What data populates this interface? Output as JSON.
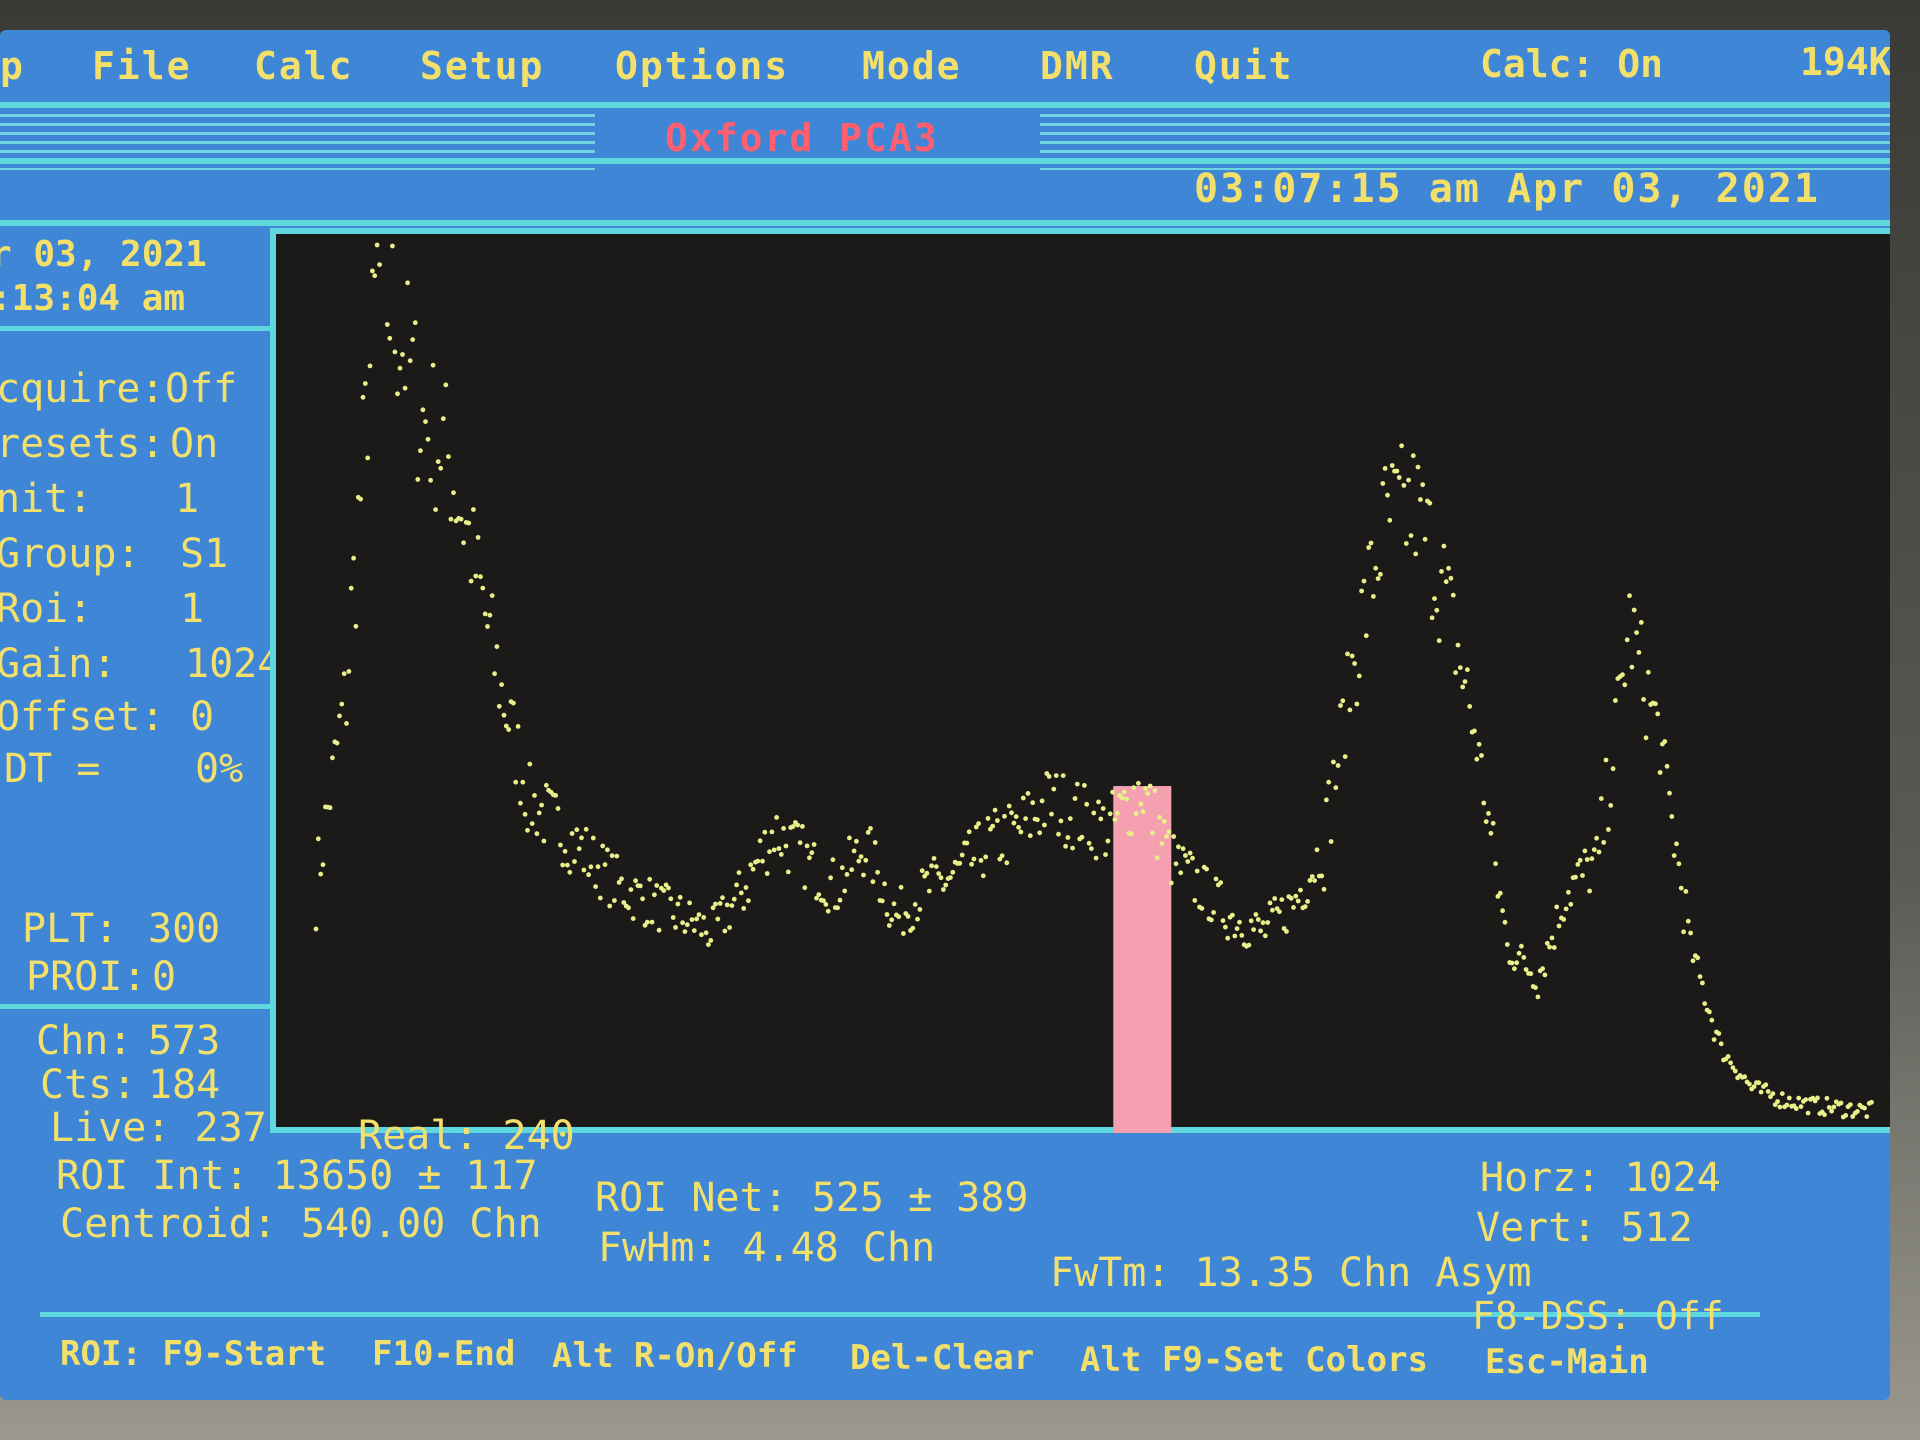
{
  "menu": {
    "items": [
      "p",
      "File",
      "Calc",
      "Setup",
      "Options",
      "Mode",
      "DMR",
      "Quit"
    ],
    "calc_status": "Calc: On",
    "mem_size": "194K"
  },
  "title": "Oxford PCA3",
  "clock": "03:07:15 am Apr 03, 2021",
  "left_panel": {
    "date": "r 03, 2021",
    "time": ":13:04 am",
    "rows": [
      {
        "label": "cquire:",
        "value": "Off"
      },
      {
        "label": "resets:",
        "value": "On"
      },
      {
        "label": "nit:",
        "value": "1"
      },
      {
        "label": "Group:",
        "value": "S1"
      },
      {
        "label": "Roi:",
        "value": "1"
      },
      {
        "label": "Gain:",
        "value": "1024"
      },
      {
        "label": "Offset:",
        "value": "0"
      },
      {
        "label": "DT =",
        "value": "0%"
      }
    ],
    "plt_label": "PLT:",
    "plt_value": "300",
    "proi_label": "PROI:",
    "proi_value": "0",
    "chn_label": "Chn:",
    "chn_value": "573",
    "cts_label": "Cts:",
    "cts_value": "184"
  },
  "status": {
    "live": "Live: 237",
    "real": "Real: 240",
    "roi_int": "ROI Int: 13650 ± 117",
    "centroid": "Centroid: 540.00 Chn",
    "roi_net": "ROI Net: 525 ± 389",
    "fwhm": "FwHm: 4.48 Chn",
    "fwtm": "FwTm: 13.35 Chn Asym",
    "horz": "Horz: 1024",
    "vert": "Vert: 512",
    "dss": "F8-DSS: Off"
  },
  "hotkeys": [
    "ROI: F9-Start",
    "F10-End",
    "Alt R-On/Off",
    "Del-Clear",
    "Alt F9-Set Colors",
    "Esc-Main"
  ],
  "colors": {
    "background": "#3f86d6",
    "text": "#f3e06b",
    "accent_line": "#5fd7df",
    "title": "#ff5f6e",
    "plot_bg": "#1b1a18",
    "points": "#e8f08a",
    "roi": "#f4a0b0"
  },
  "chart_data": {
    "type": "scatter",
    "xlim": [
      0,
      1024
    ],
    "ylim": [
      0,
      300
    ],
    "roi": {
      "start": 522,
      "end": 560
    },
    "series": [
      {
        "x": [
          0,
          20,
          40,
          55,
          70,
          85,
          100,
          120,
          140,
          160,
          180,
          200,
          220,
          240,
          260,
          280,
          300,
          320,
          340,
          360,
          380,
          400,
          420,
          440,
          460,
          480,
          500,
          520,
          540,
          560,
          580,
          600,
          620,
          640,
          660,
          680,
          700,
          720,
          740,
          760,
          780,
          800,
          820,
          840,
          860,
          880,
          900,
          920,
          940,
          960,
          980,
          1000,
          1020
        ],
        "y": [
          80,
          150,
          290,
          270,
          240,
          230,
          200,
          150,
          110,
          100,
          90,
          80,
          75,
          70,
          65,
          80,
          100,
          90,
          80,
          95,
          70,
          80,
          85,
          95,
          100,
          110,
          105,
          100,
          115,
          90,
          80,
          70,
          65,
          75,
          95,
          160,
          205,
          210,
          180,
          130,
          60,
          50,
          80,
          90,
          170,
          130,
          60,
          25,
          12,
          8,
          6,
          5,
          4
        ]
      }
    ]
  }
}
